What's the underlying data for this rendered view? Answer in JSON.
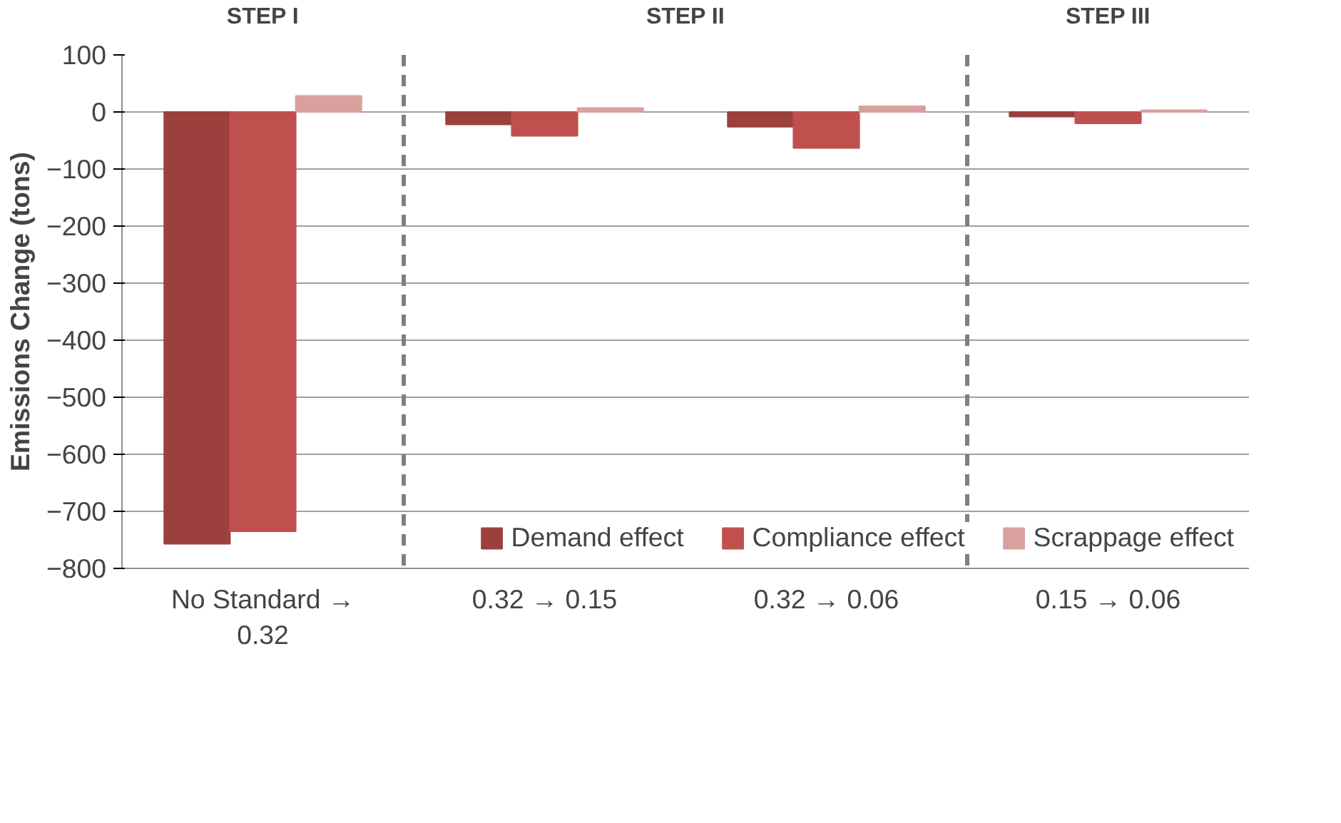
{
  "chart_data": {
    "type": "bar",
    "categories": [
      "No Standard → 0.32",
      "0.32 → 0.15",
      "0.32 → 0.06",
      "0.15 → 0.06"
    ],
    "ylabel": "Emissions Change (tons)",
    "series": [
      {
        "name": "Demand effect",
        "color": "#9c403d",
        "values": [
          -757,
          -22,
          -26,
          -8
        ]
      },
      {
        "name": "Compliance effect",
        "color": "#c0504d",
        "values": [
          -735,
          -42,
          -63,
          -20
        ]
      },
      {
        "name": "Scrappage effect",
        "color": "#d9a09e",
        "values": [
          28,
          7,
          10,
          3
        ]
      }
    ],
    "ylim": [
      -800,
      100
    ],
    "yticks": [
      -800,
      -700,
      -600,
      -500,
      -400,
      -300,
      -200,
      -100,
      0,
      100
    ],
    "grid": "y",
    "legend": "bottom",
    "annotations": [
      "STEP I",
      "STEP II",
      "STEP III"
    ]
  }
}
